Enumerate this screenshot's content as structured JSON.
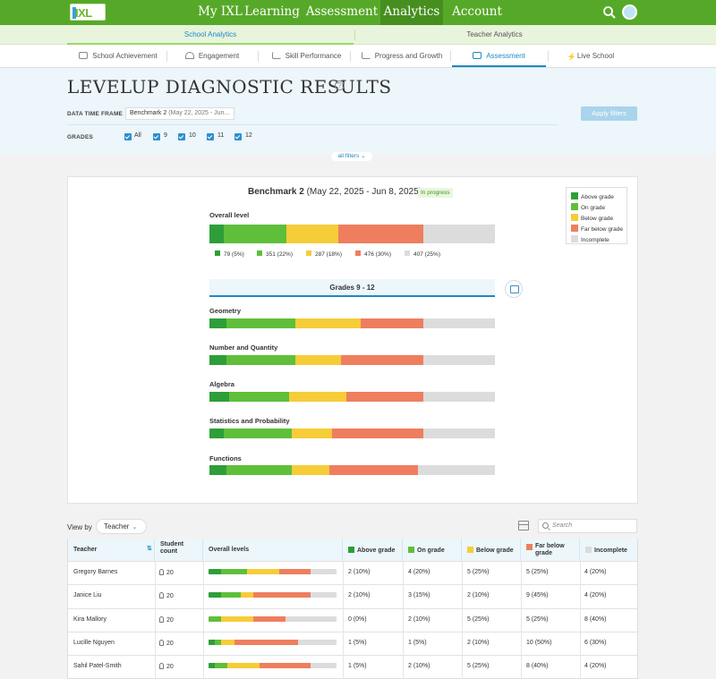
{
  "nav": {
    "logo": "IXL",
    "items": [
      "My IXL",
      "Learning",
      "Assessment",
      "Analytics",
      "Account"
    ],
    "active": "Analytics"
  },
  "subnav": {
    "items": [
      "School Analytics",
      "Teacher Analytics"
    ],
    "active": "School Analytics"
  },
  "tabs": {
    "items": [
      "School Achievement",
      "Engagement",
      "Skill Performance",
      "Progress and Growth",
      "Assessment",
      "Live School"
    ],
    "active": "Assessment"
  },
  "page": {
    "title": "LEVELUP DIAGNOSTIC RESULTS",
    "help": "?"
  },
  "filters": {
    "data_time_frame_label": "DATA TIME FRAME",
    "data_time_frame_value": "Benchmark 2",
    "data_time_frame_range": "(May 22, 2025 - Jun...",
    "grades_label": "GRADES",
    "grades": [
      "All",
      "9",
      "10",
      "11",
      "12"
    ],
    "apply_label": "Apply filters",
    "all_filters_label": "all filters ⌄"
  },
  "summary": {
    "benchmark": "Benchmark 2",
    "range": "(May 22, 2025 - Jun 8, 2025)",
    "status": "In progress",
    "overall_label": "Overall level",
    "grades_header": "Grades 9 - 12"
  },
  "legend": [
    {
      "label": "Above grade",
      "color": "#2e9e38"
    },
    {
      "label": "On grade",
      "color": "#5fbf3a"
    },
    {
      "label": "Below grade",
      "color": "#f6cc38"
    },
    {
      "label": "Far below grade",
      "color": "#ef7e5f"
    },
    {
      "label": "Incomplete",
      "color": "#dcdcdc"
    }
  ],
  "overall": {
    "counts": [
      "79 (5%)",
      "351 (22%)",
      "287 (18%)",
      "476 (30%)",
      "407 (25%)"
    ],
    "percents": [
      5,
      22,
      18,
      30,
      25
    ]
  },
  "skills": [
    {
      "label": "Geometry",
      "percents": [
        6,
        24,
        23,
        22,
        25
      ]
    },
    {
      "label": "Number and Quantity",
      "percents": [
        6,
        24,
        16,
        29,
        25
      ]
    },
    {
      "label": "Algebra",
      "percents": [
        7,
        21,
        20,
        27,
        25
      ]
    },
    {
      "label": "Statistics and Probability",
      "percents": [
        5,
        24,
        14,
        32,
        25
      ]
    },
    {
      "label": "Functions",
      "percents": [
        6,
        23,
        13,
        31,
        27
      ]
    }
  ],
  "table": {
    "view_by_label": "View by",
    "view_by_value": "Teacher",
    "search_placeholder": "Search",
    "headers": [
      "Teacher",
      "Student count",
      "Overall levels",
      "Above grade",
      "On grade",
      "Below grade",
      "Far below grade",
      "Incomplete"
    ],
    "rows": [
      {
        "teacher": "Gregory Barnes",
        "count": "20",
        "cells": [
          "2 (10%)",
          "4 (20%)",
          "5 (25%)",
          "5 (25%)",
          "4 (20%)"
        ],
        "percents": [
          10,
          20,
          25,
          25,
          20
        ]
      },
      {
        "teacher": "Janice Liu",
        "count": "20",
        "cells": [
          "2 (10%)",
          "3 (15%)",
          "2 (10%)",
          "9 (45%)",
          "4 (20%)"
        ],
        "percents": [
          10,
          15,
          10,
          45,
          20
        ]
      },
      {
        "teacher": "Kira Mallory",
        "count": "20",
        "cells": [
          "0 (0%)",
          "2 (10%)",
          "5 (25%)",
          "5 (25%)",
          "8 (40%)"
        ],
        "percents": [
          0,
          10,
          25,
          25,
          40
        ]
      },
      {
        "teacher": "Lucille Nguyen",
        "count": "20",
        "cells": [
          "1 (5%)",
          "1 (5%)",
          "2 (10%)",
          "10 (50%)",
          "6 (30%)"
        ],
        "percents": [
          5,
          5,
          10,
          50,
          30
        ]
      },
      {
        "teacher": "Sahil Patel-Smith",
        "count": "20",
        "cells": [
          "1 (5%)",
          "2 (10%)",
          "5 (25%)",
          "8 (40%)",
          "4 (20%)"
        ],
        "percents": [
          5,
          10,
          25,
          40,
          20
        ]
      }
    ]
  }
}
